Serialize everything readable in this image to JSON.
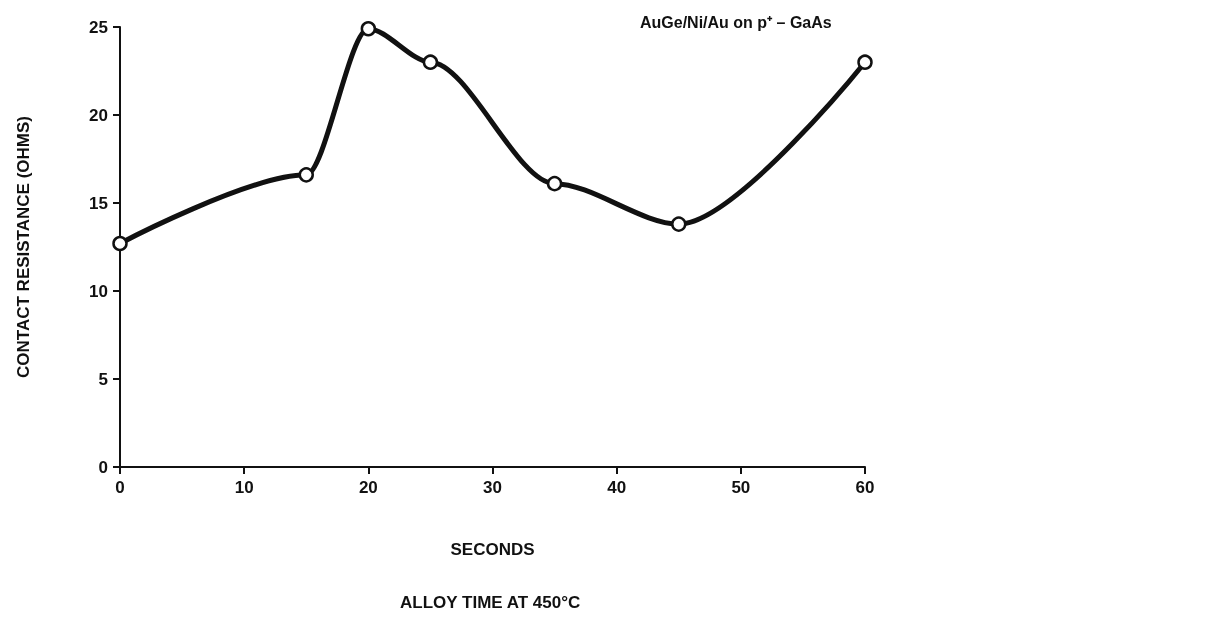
{
  "chart_data": {
    "type": "line",
    "xlabel": "SECONDS",
    "ylabel": "CONTACT RESISTANCE (OHMS)",
    "annotations": [
      "AuGe/Ni/Au on p⁺ – GaAs",
      "ALLOY TIME AT 450°C"
    ],
    "x": [
      0,
      15,
      20,
      25,
      35,
      45,
      60
    ],
    "series": [
      {
        "color": "#111111",
        "values": [
          12.7,
          16.6,
          24.9,
          23.0,
          16.1,
          13.8,
          23.0
        ]
      }
    ],
    "xlim": [
      0,
      60
    ],
    "xticks": [
      0,
      10,
      20,
      30,
      40,
      50,
      60
    ],
    "ylim": [
      0,
      25
    ],
    "yticks": [
      0,
      5,
      10,
      15,
      20,
      25
    ],
    "grid": false,
    "marker": "circle",
    "line_style": "solid"
  }
}
